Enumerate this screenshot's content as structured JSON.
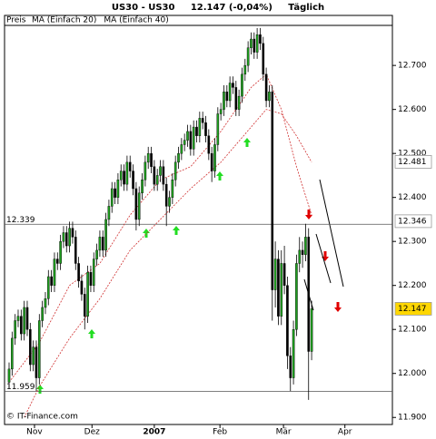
{
  "chart_data": {
    "type": "candlestick",
    "title": "US30 - US30     12.147 (-0,04%)     Täglich",
    "footer": "© IT-Finance.com",
    "up_color": "#1f9f1f",
    "down_color": "#000000",
    "ma_color": "#d03030",
    "grid": false,
    "xlim": [
      -1.5,
      126.7
    ],
    "xticks": [
      {
        "value": 8.4,
        "label": "Nov"
      },
      {
        "value": 27.4,
        "label": "Dez"
      },
      {
        "value": 48,
        "label": "2007"
      },
      {
        "value": 69.7,
        "label": "Feb"
      },
      {
        "value": 90.7,
        "label": "Mär"
      },
      {
        "value": 111,
        "label": "Apr"
      }
    ],
    "ylim": [
      11884,
      12791
    ],
    "yticks": [
      {
        "value": 11900,
        "label": "11.900"
      },
      {
        "value": 12000,
        "label": "12.000"
      },
      {
        "value": 12100,
        "label": "12.100"
      },
      {
        "value": 12200,
        "label": "12.200"
      },
      {
        "value": 12300,
        "label": "12.300"
      },
      {
        "value": 12400,
        "label": "12.400"
      },
      {
        "value": 12500,
        "label": "12.500"
      },
      {
        "value": 12600,
        "label": "12.600"
      },
      {
        "value": 12700,
        "label": "12.700"
      }
    ],
    "price": {
      "name": "Preis",
      "open": [
        11980,
        12010,
        12080,
        12120,
        12130,
        12090,
        12150,
        12100,
        12020,
        12060,
        11990,
        12120,
        12150,
        12170,
        12220,
        12200,
        12260,
        12250,
        12300,
        12320,
        12290,
        12330,
        12310,
        12250,
        12210,
        12180,
        12130,
        12230,
        12200,
        12260,
        12280,
        12310,
        12280,
        12350,
        12380,
        12420,
        12400,
        12440,
        12460,
        12430,
        12480,
        12460,
        12420,
        12350,
        12410,
        12440,
        12480,
        12500,
        12470,
        12430,
        12450,
        12470,
        12430,
        12380,
        12400,
        12440,
        12480,
        12500,
        12520,
        12530,
        12550,
        12510,
        12560,
        12540,
        12580,
        12570,
        12540,
        12500,
        12460,
        12520,
        12590,
        12600,
        12640,
        12620,
        12660,
        12650,
        12600,
        12630,
        12680,
        12700,
        12740,
        12760,
        12730,
        12770,
        12750,
        12680,
        12620,
        12640,
        12190,
        12260,
        12130,
        12250,
        12200,
        12040,
        11990,
        12100,
        12250,
        12280,
        12270,
        12310,
        12050
      ],
      "high": [
        12025,
        12095,
        12135,
        12145,
        12145,
        12165,
        12165,
        12115,
        12075,
        12075,
        12135,
        12165,
        12185,
        12235,
        12235,
        12275,
        12275,
        12315,
        12335,
        12335,
        12345,
        12345,
        12325,
        12265,
        12225,
        12195,
        12245,
        12245,
        12275,
        12295,
        12325,
        12325,
        12365,
        12395,
        12435,
        12435,
        12455,
        12475,
        12475,
        12495,
        12495,
        12475,
        12435,
        12425,
        12455,
        12495,
        12515,
        12515,
        12485,
        12465,
        12485,
        12485,
        12445,
        12415,
        12455,
        12495,
        12515,
        12535,
        12545,
        12565,
        12565,
        12575,
        12575,
        12595,
        12595,
        12585,
        12555,
        12515,
        12535,
        12605,
        12615,
        12655,
        12655,
        12675,
        12675,
        12665,
        12645,
        12695,
        12715,
        12755,
        12775,
        12775,
        12785,
        12785,
        12765,
        12695,
        12655,
        12655,
        12300,
        12280,
        12280,
        12290,
        12220,
        12060,
        12120,
        12270,
        12310,
        12300,
        12340,
        12330,
        12165
      ],
      "low": [
        11965,
        11995,
        12065,
        12105,
        12075,
        12075,
        12085,
        12005,
        12005,
        11960,
        11975,
        12105,
        12135,
        12155,
        12185,
        12185,
        12235,
        12235,
        12285,
        12275,
        12275,
        12295,
        12235,
        12195,
        12165,
        12100,
        12115,
        12185,
        12185,
        12245,
        12265,
        12265,
        12265,
        12335,
        12365,
        12385,
        12385,
        12425,
        12415,
        12415,
        12445,
        12405,
        12325,
        12335,
        12395,
        12425,
        12465,
        12455,
        12415,
        12415,
        12435,
        12415,
        12335,
        12365,
        12385,
        12425,
        12465,
        12485,
        12505,
        12515,
        12495,
        12495,
        12525,
        12525,
        12555,
        12525,
        12485,
        12435,
        12445,
        12505,
        12575,
        12585,
        12605,
        12605,
        12635,
        12585,
        12585,
        12615,
        12665,
        12685,
        12725,
        12715,
        12715,
        12735,
        12665,
        12605,
        12605,
        12120,
        12150,
        12110,
        12110,
        12180,
        12010,
        11960,
        11975,
        12085,
        12230,
        12240,
        12255,
        11940,
        12030
      ],
      "close": [
        12010,
        12080,
        12120,
        12130,
        12090,
        12150,
        12100,
        12020,
        12060,
        11990,
        12120,
        12150,
        12170,
        12220,
        12200,
        12260,
        12250,
        12300,
        12320,
        12290,
        12330,
        12310,
        12250,
        12210,
        12180,
        12130,
        12230,
        12200,
        12260,
        12280,
        12310,
        12280,
        12350,
        12380,
        12420,
        12400,
        12440,
        12460,
        12430,
        12480,
        12460,
        12420,
        12350,
        12410,
        12440,
        12480,
        12500,
        12470,
        12430,
        12450,
        12470,
        12430,
        12380,
        12400,
        12440,
        12480,
        12500,
        12520,
        12530,
        12550,
        12510,
        12560,
        12540,
        12580,
        12570,
        12540,
        12500,
        12460,
        12520,
        12590,
        12600,
        12640,
        12620,
        12660,
        12650,
        12600,
        12630,
        12680,
        12700,
        12740,
        12760,
        12730,
        12770,
        12750,
        12680,
        12620,
        12640,
        12190,
        12260,
        12130,
        12250,
        12200,
        12040,
        11990,
        12100,
        12250,
        12280,
        12270,
        12310,
        12050,
        12147
      ]
    },
    "series": [
      {
        "name": "MA (Einfach 20)",
        "x": [
          0,
          10,
          20,
          30,
          40,
          50,
          60,
          70,
          80,
          85,
          90,
          95,
          100
        ],
        "values": [
          11980,
          12070,
          12200,
          12250,
          12360,
          12440,
          12470,
          12550,
          12650,
          12680,
          12600,
          12470,
          12360
        ]
      },
      {
        "name": "MA (Einfach 40)",
        "x": [
          5,
          10,
          20,
          30,
          40,
          50,
          60,
          70,
          80,
          85,
          90,
          95,
          100
        ],
        "values": [
          11900,
          11970,
          12080,
          12170,
          12280,
          12350,
          12420,
          12480,
          12560,
          12600,
          12590,
          12540,
          12480
        ]
      }
    ],
    "hlines": [
      {
        "value": 12339,
        "label": "12.339"
      },
      {
        "value": 11959,
        "label": "11.959"
      }
    ],
    "price_labels": [
      {
        "value": 12481,
        "label": "12.481",
        "color": "#d03030",
        "background": "#ffffff"
      },
      {
        "value": 12346,
        "label": "12.346",
        "color": "#d03030",
        "background": "#ffffff"
      },
      {
        "value": 12147,
        "label": "12.147",
        "color": "#000000",
        "background": "#ffd700"
      }
    ]
  }
}
